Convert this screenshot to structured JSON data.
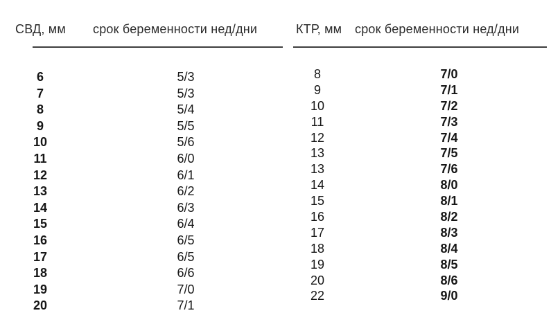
{
  "page": {
    "background": "#ffffff",
    "text_color": "#1a1a1a",
    "rule_color": "#3e3e3e",
    "language": "ru"
  },
  "svd_table": {
    "col1_header": "СВД, мм",
    "col2_header": "срок беременности нед/дни",
    "rows": [
      {
        "mm": "6",
        "term": "5/3"
      },
      {
        "mm": "7",
        "term": "5/3"
      },
      {
        "mm": "8",
        "term": "5/4"
      },
      {
        "mm": "9",
        "term": "5/5"
      },
      {
        "mm": "10",
        "term": "5/6"
      },
      {
        "mm": "11",
        "term": "6/0"
      },
      {
        "mm": "12",
        "term": "6/1"
      },
      {
        "mm": "13",
        "term": "6/2"
      },
      {
        "mm": "14",
        "term": "6/3"
      },
      {
        "mm": "15",
        "term": "6/4"
      },
      {
        "mm": "16",
        "term": "6/5"
      },
      {
        "mm": "17",
        "term": "6/5"
      },
      {
        "mm": "18",
        "term": "6/6"
      },
      {
        "mm": "19",
        "term": "7/0"
      },
      {
        "mm": "20",
        "term": "7/1"
      }
    ]
  },
  "ktr_table": {
    "col1_header": "КТР, мм",
    "col2_header": "срок беременности нед/дни",
    "rows": [
      {
        "mm": "8",
        "term": "7/0"
      },
      {
        "mm": "9",
        "term": "7/1"
      },
      {
        "mm": "10",
        "term": "7/2"
      },
      {
        "mm": "11",
        "term": "7/3"
      },
      {
        "mm": "12",
        "term": "7/4"
      },
      {
        "mm": "13",
        "term": "7/5"
      },
      {
        "mm": "13",
        "term": "7/6"
      },
      {
        "mm": "14",
        "term": "8/0"
      },
      {
        "mm": "15",
        "term": "8/1"
      },
      {
        "mm": "16",
        "term": "8/2"
      },
      {
        "mm": "17",
        "term": "8/3"
      },
      {
        "mm": "18",
        "term": "8/4"
      },
      {
        "mm": "19",
        "term": "8/5"
      },
      {
        "mm": "20",
        "term": "8/6"
      },
      {
        "mm": "22",
        "term": "9/0"
      }
    ]
  }
}
